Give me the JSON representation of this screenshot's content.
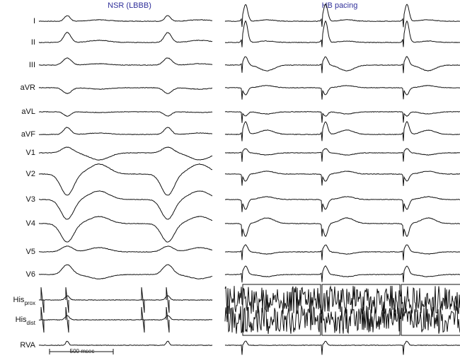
{
  "left_panel": {
    "title": "NSR (LBBB)"
  },
  "right_panel": {
    "title": "HB pacing"
  },
  "leads": [
    {
      "label": "I"
    },
    {
      "label": "II"
    },
    {
      "label": "III"
    },
    {
      "label": "aVR"
    },
    {
      "label": "aVL"
    },
    {
      "label": "aVF"
    },
    {
      "label": "V1"
    },
    {
      "label": "V2"
    },
    {
      "label": "V3"
    },
    {
      "label": "V4"
    },
    {
      "label": "V5"
    },
    {
      "label": "V6"
    },
    {
      "label": "His",
      "subscript": "prox"
    },
    {
      "label": "His",
      "subscript": "dist"
    },
    {
      "label": "RVA"
    }
  ],
  "scale_bar": {
    "label": "500 msec"
  }
}
